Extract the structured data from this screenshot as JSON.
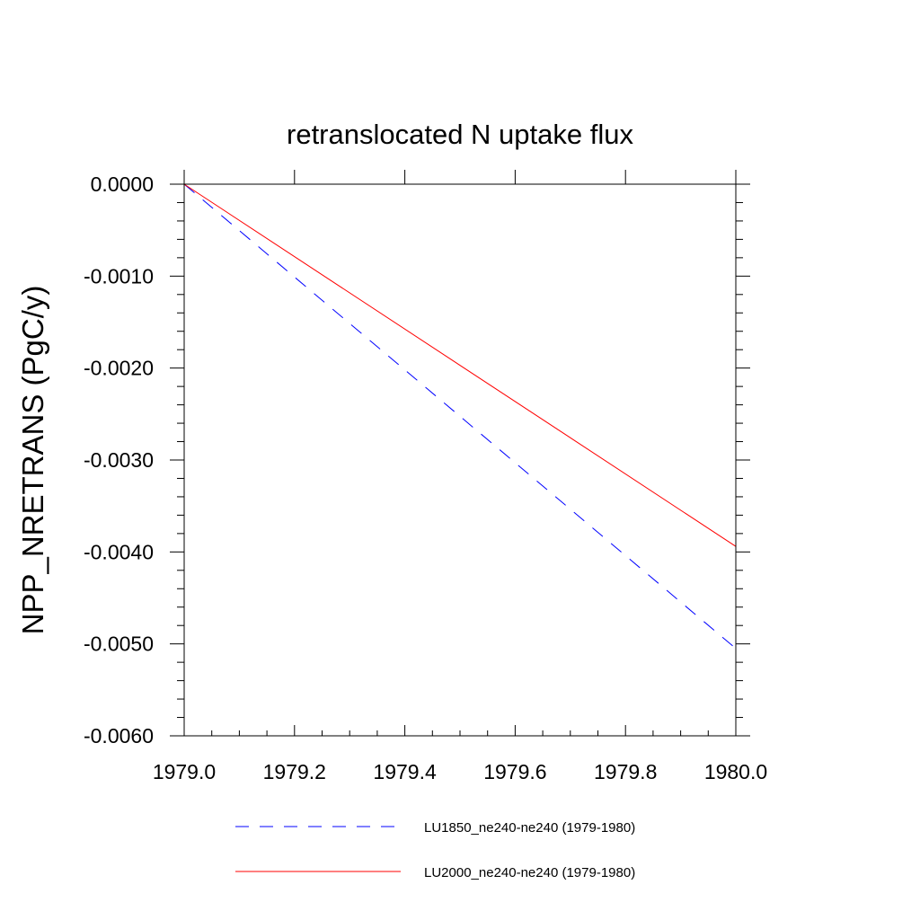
{
  "chart_data": {
    "type": "line",
    "title": "retranslocated N uptake flux",
    "xlabel": "",
    "ylabel": "NPP_NRETRANS  (PgC/y)",
    "xlim": [
      1979.0,
      1980.0
    ],
    "ylim": [
      -0.006,
      0.0
    ],
    "x_ticks": [
      "1979.0",
      "1979.2",
      "1979.4",
      "1979.6",
      "1979.8",
      "1980.0"
    ],
    "y_ticks": [
      "0.0000",
      "-0.0010",
      "-0.0020",
      "-0.0030",
      "-0.0040",
      "-0.0050",
      "-0.0060"
    ],
    "grid": false,
    "legend_position": "bottom",
    "series": [
      {
        "name": "LU1850_ne240-ne240 (1979-1980)",
        "color": "#0000ff",
        "dash": "dashed",
        "x": [
          1979.0,
          1980.0
        ],
        "y": [
          0.0,
          -0.00505
        ]
      },
      {
        "name": "LU2000_ne240-ne240 (1979-1980)",
        "color": "#ff0000",
        "dash": "solid",
        "x": [
          1979.0,
          1980.0
        ],
        "y": [
          0.0,
          -0.00394
        ]
      }
    ]
  }
}
